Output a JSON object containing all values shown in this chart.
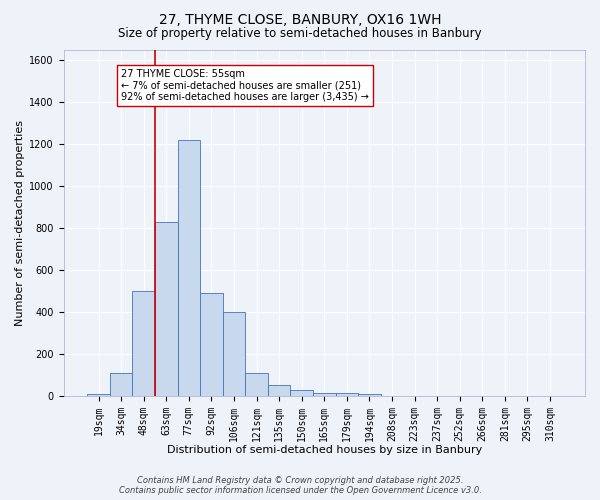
{
  "title": "27, THYME CLOSE, BANBURY, OX16 1WH",
  "subtitle": "Size of property relative to semi-detached houses in Banbury",
  "xlabel": "Distribution of semi-detached houses by size in Banbury",
  "ylabel": "Number of semi-detached properties",
  "bar_labels": [
    "19sqm",
    "34sqm",
    "48sqm",
    "63sqm",
    "77sqm",
    "92sqm",
    "106sqm",
    "121sqm",
    "135sqm",
    "150sqm",
    "165sqm",
    "179sqm",
    "194sqm",
    "208sqm",
    "223sqm",
    "237sqm",
    "252sqm",
    "266sqm",
    "281sqm",
    "295sqm",
    "310sqm"
  ],
  "bar_values": [
    10,
    110,
    500,
    830,
    1220,
    490,
    400,
    110,
    50,
    30,
    15,
    15,
    10,
    0,
    0,
    0,
    0,
    0,
    0,
    0,
    0
  ],
  "bar_color": "#c9d9ed",
  "bar_edge_color": "#4472c4",
  "background_color": "#eef2f9",
  "grid_color": "#ffffff",
  "vline_color": "#cc0000",
  "vline_pos": 2.5,
  "annotation_text": "27 THYME CLOSE: 55sqm\n← 7% of semi-detached houses are smaller (251)\n92% of semi-detached houses are larger (3,435) →",
  "annotation_box_facecolor": "#ffffff",
  "annotation_box_edgecolor": "#cc0000",
  "ylim": [
    0,
    1650
  ],
  "yticks": [
    0,
    200,
    400,
    600,
    800,
    1000,
    1200,
    1400,
    1600
  ],
  "footer_line1": "Contains HM Land Registry data © Crown copyright and database right 2025.",
  "footer_line2": "Contains public sector information licensed under the Open Government Licence v3.0.",
  "title_fontsize": 10,
  "subtitle_fontsize": 8.5,
  "xlabel_fontsize": 8,
  "ylabel_fontsize": 8,
  "tick_fontsize": 7,
  "annotation_fontsize": 7,
  "footer_fontsize": 6
}
